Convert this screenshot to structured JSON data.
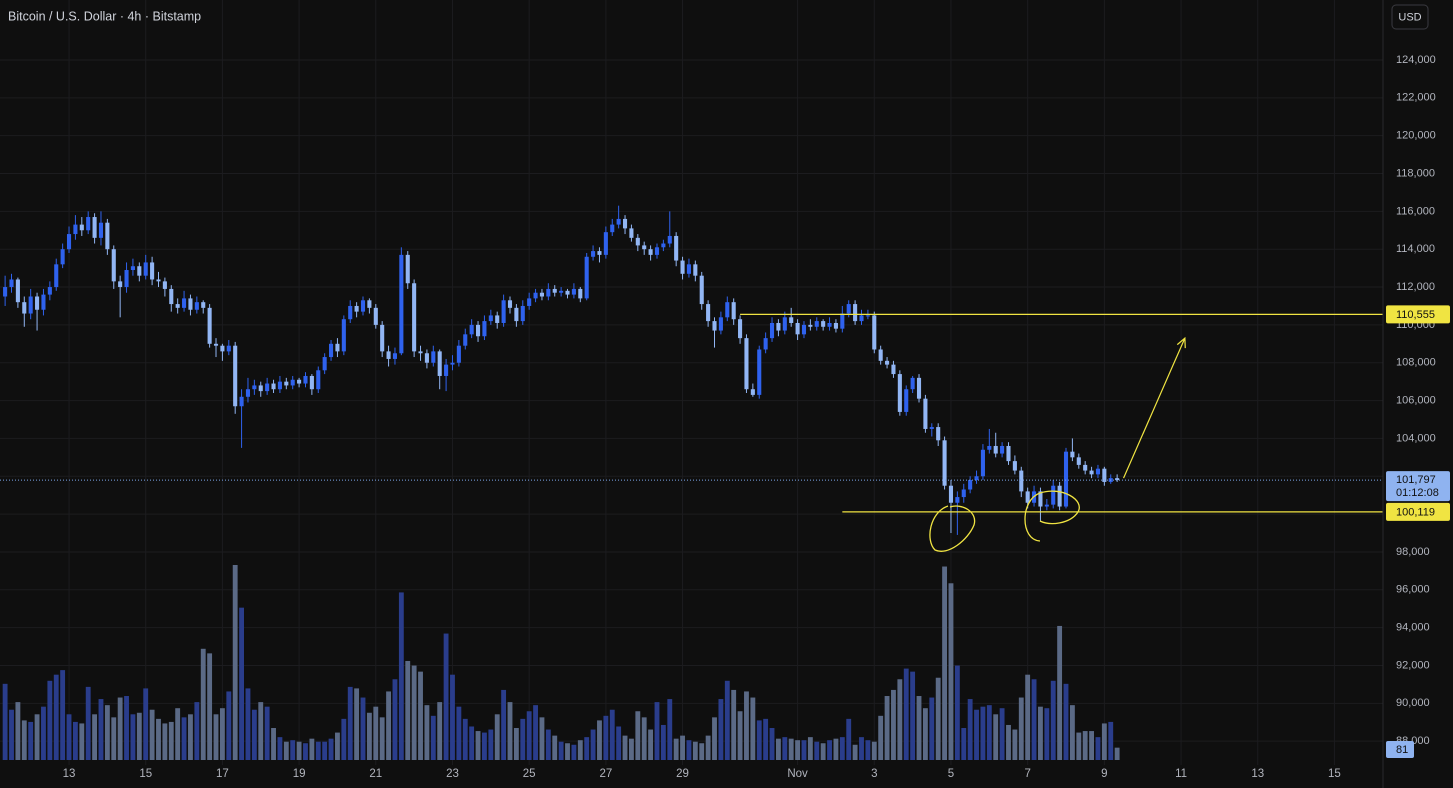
{
  "chart_data": {
    "type": "candlestick",
    "title": "Bitcoin / U.S. Dollar · 4h · Bitstamp",
    "currency_button": "USD",
    "up_color": "#2f62ee",
    "down_color": "#92b6f4",
    "volume_up_color": "#2a3d8c",
    "volume_down_color": "#5b6a86",
    "grid": true,
    "xlim": [
      -0.8,
      215.6
    ],
    "ylim": [
      86740,
      127170
    ],
    "xticks": [
      {
        "value": 10,
        "label": "13"
      },
      {
        "value": 22,
        "label": "15"
      },
      {
        "value": 34,
        "label": "17"
      },
      {
        "value": 46,
        "label": "19"
      },
      {
        "value": 58,
        "label": "21"
      },
      {
        "value": 70,
        "label": "23"
      },
      {
        "value": 82,
        "label": "25"
      },
      {
        "value": 94,
        "label": "27"
      },
      {
        "value": 106,
        "label": "29"
      },
      {
        "value": 124,
        "label": "Nov"
      },
      {
        "value": 136,
        "label": "3"
      },
      {
        "value": 148,
        "label": "5"
      },
      {
        "value": 160,
        "label": "7"
      },
      {
        "value": 172,
        "label": "9"
      },
      {
        "value": 184,
        "label": "11"
      },
      {
        "value": 196,
        "label": "13"
      },
      {
        "value": 208,
        "label": "15"
      }
    ],
    "yticks": [
      {
        "value": 88000,
        "label": "88,000"
      },
      {
        "value": 90000,
        "label": "90,000"
      },
      {
        "value": 92000,
        "label": "92,000"
      },
      {
        "value": 94000,
        "label": "94,000"
      },
      {
        "value": 96000,
        "label": "96,000"
      },
      {
        "value": 98000,
        "label": "98,000"
      },
      {
        "value": 100000,
        "label": "100,000"
      },
      {
        "value": 102000,
        "label": "102,000"
      },
      {
        "value": 104000,
        "label": "104,000"
      },
      {
        "value": 106000,
        "label": "106,000"
      },
      {
        "value": 108000,
        "label": "108,000"
      },
      {
        "value": 110000,
        "label": "110,000"
      },
      {
        "value": 112000,
        "label": "112,000"
      },
      {
        "value": 114000,
        "label": "114,000"
      },
      {
        "value": 116000,
        "label": "116,000"
      },
      {
        "value": 118000,
        "label": "118,000"
      },
      {
        "value": 120000,
        "label": "120,000"
      },
      {
        "value": 122000,
        "label": "122,000"
      },
      {
        "value": 124000,
        "label": "124,000"
      }
    ],
    "ohlc": [
      [
        111500,
        112600,
        111000,
        112000
      ],
      [
        112000,
        112700,
        111700,
        112400
      ],
      [
        112400,
        112500,
        110900,
        111200
      ],
      [
        111200,
        111500,
        109900,
        110600
      ],
      [
        110600,
        111900,
        110300,
        111500
      ],
      [
        111500,
        111700,
        109700,
        110800
      ],
      [
        110800,
        111900,
        110500,
        111600
      ],
      [
        111600,
        112300,
        111300,
        112000
      ],
      [
        112000,
        113500,
        111800,
        113200
      ],
      [
        113200,
        114300,
        113000,
        114000
      ],
      [
        114000,
        115200,
        113800,
        114800
      ],
      [
        114800,
        115800,
        114500,
        115300
      ],
      [
        115300,
        115700,
        114700,
        115000
      ],
      [
        115000,
        116000,
        114800,
        115700
      ],
      [
        115700,
        115900,
        114300,
        114600
      ],
      [
        114600,
        116000,
        114200,
        115400
      ],
      [
        115400,
        115600,
        113700,
        114000
      ],
      [
        114000,
        114200,
        111900,
        112300
      ],
      [
        112300,
        112600,
        110400,
        112000
      ],
      [
        112000,
        113300,
        111700,
        112900
      ],
      [
        112900,
        113500,
        112600,
        113100
      ],
      [
        113100,
        113300,
        112300,
        112600
      ],
      [
        112600,
        113700,
        112400,
        113300
      ],
      [
        113300,
        113600,
        112100,
        112400
      ],
      [
        112400,
        112800,
        112000,
        112300
      ],
      [
        112300,
        112500,
        111500,
        111900
      ],
      [
        111900,
        112100,
        110700,
        111100
      ],
      [
        111100,
        111400,
        110600,
        110900
      ],
      [
        110900,
        111800,
        110700,
        111400
      ],
      [
        111400,
        111600,
        110500,
        110800
      ],
      [
        110800,
        111500,
        110600,
        111200
      ],
      [
        111200,
        111300,
        110600,
        110900
      ],
      [
        110900,
        111100,
        108800,
        109000
      ],
      [
        109000,
        109300,
        108300,
        108900
      ],
      [
        108900,
        109000,
        108100,
        108600
      ],
      [
        108600,
        109200,
        108400,
        108900
      ],
      [
        108900,
        109100,
        105300,
        105700
      ],
      [
        105700,
        106600,
        103500,
        106200
      ],
      [
        106200,
        107200,
        105900,
        106600
      ],
      [
        106600,
        107100,
        106300,
        106800
      ],
      [
        106800,
        107000,
        106200,
        106500
      ],
      [
        106500,
        107200,
        106300,
        106900
      ],
      [
        106900,
        107100,
        106400,
        106600
      ],
      [
        106600,
        107300,
        106400,
        107000
      ],
      [
        107000,
        107200,
        106600,
        106800
      ],
      [
        106800,
        107300,
        106600,
        107100
      ],
      [
        107100,
        107200,
        106700,
        106900
      ],
      [
        106900,
        107500,
        106700,
        107300
      ],
      [
        107300,
        107400,
        106300,
        106600
      ],
      [
        106600,
        107800,
        106400,
        107600
      ],
      [
        107600,
        108500,
        107400,
        108300
      ],
      [
        108300,
        109200,
        108100,
        109000
      ],
      [
        109000,
        109300,
        108300,
        108600
      ],
      [
        108600,
        110500,
        108400,
        110300
      ],
      [
        110300,
        111300,
        110100,
        111000
      ],
      [
        111000,
        111200,
        110400,
        110700
      ],
      [
        110700,
        111500,
        110500,
        111300
      ],
      [
        111300,
        111400,
        110600,
        110900
      ],
      [
        110900,
        111100,
        109800,
        110000
      ],
      [
        110000,
        110200,
        108300,
        108600
      ],
      [
        108600,
        108900,
        107800,
        108200
      ],
      [
        108200,
        108800,
        107900,
        108500
      ],
      [
        108500,
        114100,
        108400,
        113700
      ],
      [
        113700,
        113900,
        111900,
        112200
      ],
      [
        112200,
        112400,
        108300,
        108600
      ],
      [
        108600,
        108900,
        108100,
        108500
      ],
      [
        108500,
        108700,
        107700,
        108000
      ],
      [
        108000,
        108900,
        107800,
        108600
      ],
      [
        108600,
        108700,
        106600,
        107300
      ],
      [
        107300,
        108200,
        106500,
        107900
      ],
      [
        107900,
        108400,
        107600,
        108000
      ],
      [
        108000,
        109200,
        107800,
        108900
      ],
      [
        108900,
        109800,
        108700,
        109500
      ],
      [
        109500,
        110300,
        109300,
        110000
      ],
      [
        110000,
        110200,
        109100,
        109400
      ],
      [
        109400,
        110500,
        109200,
        110200
      ],
      [
        110200,
        110800,
        110000,
        110500
      ],
      [
        110500,
        110700,
        109800,
        110100
      ],
      [
        110100,
        111600,
        109900,
        111300
      ],
      [
        111300,
        111500,
        110600,
        110900
      ],
      [
        110900,
        111100,
        109900,
        110200
      ],
      [
        110200,
        111300,
        110000,
        111000
      ],
      [
        111000,
        111700,
        110800,
        111400
      ],
      [
        111400,
        111900,
        111200,
        111700
      ],
      [
        111700,
        111900,
        111300,
        111500
      ],
      [
        111500,
        112200,
        111300,
        111900
      ],
      [
        111900,
        112100,
        111500,
        111700
      ],
      [
        111700,
        112000,
        111500,
        111800
      ],
      [
        111800,
        111900,
        111400,
        111600
      ],
      [
        111600,
        112200,
        111400,
        111900
      ],
      [
        111900,
        112000,
        111200,
        111400
      ],
      [
        111400,
        113800,
        111300,
        113600
      ],
      [
        113600,
        114200,
        113400,
        113900
      ],
      [
        113900,
        114100,
        113300,
        113700
      ],
      [
        113700,
        115200,
        113500,
        114900
      ],
      [
        114900,
        115600,
        114700,
        115300
      ],
      [
        115300,
        116300,
        115100,
        115600
      ],
      [
        115600,
        115800,
        114800,
        115100
      ],
      [
        115100,
        115300,
        114400,
        114600
      ],
      [
        114600,
        114800,
        113900,
        114200
      ],
      [
        114200,
        114400,
        113700,
        114000
      ],
      [
        114000,
        114200,
        113400,
        113700
      ],
      [
        113700,
        114300,
        113500,
        114100
      ],
      [
        114100,
        114500,
        113900,
        114300
      ],
      [
        114300,
        116000,
        114100,
        114700
      ],
      [
        114700,
        114900,
        113100,
        113400
      ],
      [
        113400,
        113600,
        112400,
        112700
      ],
      [
        112700,
        113500,
        112500,
        113200
      ],
      [
        113200,
        113400,
        112300,
        112600
      ],
      [
        112600,
        112800,
        110800,
        111100
      ],
      [
        111100,
        111300,
        109900,
        110200
      ],
      [
        110200,
        110400,
        108800,
        109700
      ],
      [
        109700,
        110700,
        109500,
        110400
      ],
      [
        110400,
        111500,
        110200,
        111200
      ],
      [
        111200,
        111400,
        110000,
        110300
      ],
      [
        110300,
        110500,
        109000,
        109300
      ],
      [
        109300,
        109500,
        106400,
        106600
      ],
      [
        106600,
        106900,
        106200,
        106300
      ],
      [
        106300,
        108900,
        106100,
        108700
      ],
      [
        108700,
        109600,
        108500,
        109300
      ],
      [
        109300,
        110400,
        109100,
        110100
      ],
      [
        110100,
        110300,
        109400,
        109700
      ],
      [
        109700,
        110700,
        109500,
        110400
      ],
      [
        110400,
        110900,
        109900,
        110100
      ],
      [
        110100,
        110300,
        109200,
        109500
      ],
      [
        109500,
        110200,
        109300,
        110000
      ],
      [
        110000,
        110300,
        109700,
        109900
      ],
      [
        109900,
        110400,
        109700,
        110200
      ],
      [
        110200,
        110300,
        109700,
        109900
      ],
      [
        109900,
        110400,
        109700,
        110100
      ],
      [
        110100,
        110300,
        109600,
        109800
      ],
      [
        109800,
        111000,
        109600,
        110600
      ],
      [
        110600,
        111300,
        110400,
        111100
      ],
      [
        111100,
        111300,
        110000,
        110200
      ],
      [
        110200,
        110800,
        110000,
        110500
      ],
      [
        110500,
        110800,
        110300,
        110500
      ],
      [
        110500,
        110700,
        108500,
        108700
      ],
      [
        108700,
        108900,
        107900,
        108100
      ],
      [
        108100,
        108300,
        107700,
        107900
      ],
      [
        107900,
        108100,
        107200,
        107400
      ],
      [
        107400,
        107600,
        105200,
        105400
      ],
      [
        105400,
        106800,
        105200,
        106600
      ],
      [
        106600,
        107300,
        106400,
        107200
      ],
      [
        107200,
        107400,
        105900,
        106100
      ],
      [
        106100,
        106300,
        104300,
        104500
      ],
      [
        104500,
        104800,
        104100,
        104600
      ],
      [
        104600,
        104800,
        103600,
        103900
      ],
      [
        103900,
        104100,
        101300,
        101500
      ],
      [
        101500,
        101800,
        99000,
        100600
      ],
      [
        100600,
        101200,
        98900,
        100900
      ],
      [
        100900,
        101600,
        100600,
        101300
      ],
      [
        101300,
        102000,
        101100,
        101800
      ],
      [
        101800,
        102300,
        101600,
        102000
      ],
      [
        102000,
        103700,
        101800,
        103400
      ],
      [
        103400,
        104500,
        103200,
        103600
      ],
      [
        103600,
        104300,
        103000,
        103200
      ],
      [
        103200,
        103800,
        103000,
        103600
      ],
      [
        103600,
        103800,
        102600,
        102800
      ],
      [
        102800,
        103100,
        102100,
        102300
      ],
      [
        102300,
        102500,
        100900,
        101200
      ],
      [
        101200,
        101400,
        100300,
        100600
      ],
      [
        100600,
        101500,
        100400,
        101200
      ],
      [
        101200,
        101400,
        99600,
        100400
      ],
      [
        100400,
        100800,
        100200,
        100500
      ],
      [
        100500,
        101800,
        100300,
        101500
      ],
      [
        101500,
        101700,
        100200,
        100400
      ],
      [
        100400,
        103500,
        100300,
        103300
      ],
      [
        103300,
        104000,
        102800,
        103000
      ],
      [
        103000,
        103200,
        102400,
        102600
      ],
      [
        102600,
        102800,
        102100,
        102300
      ],
      [
        102300,
        102500,
        101900,
        102100
      ],
      [
        102100,
        102600,
        101900,
        102400
      ],
      [
        102400,
        102500,
        101500,
        101700
      ],
      [
        101700,
        102100,
        101600,
        101900
      ],
      [
        101900,
        102100,
        101700,
        101797
      ]
    ],
    "volume": [
      500,
      330,
      380,
      260,
      250,
      300,
      350,
      520,
      560,
      590,
      300,
      250,
      240,
      480,
      300,
      400,
      360,
      280,
      410,
      420,
      300,
      310,
      470,
      330,
      270,
      240,
      250,
      340,
      280,
      300,
      380,
      730,
      700,
      300,
      340,
      450,
      1280,
      1000,
      470,
      330,
      380,
      350,
      210,
      150,
      120,
      130,
      120,
      110,
      140,
      120,
      120,
      140,
      180,
      270,
      480,
      470,
      410,
      310,
      350,
      280,
      450,
      530,
      1100,
      650,
      620,
      580,
      360,
      290,
      380,
      830,
      560,
      350,
      270,
      220,
      190,
      180,
      200,
      300,
      460,
      380,
      210,
      270,
      320,
      360,
      280,
      200,
      160,
      120,
      110,
      100,
      130,
      150,
      200,
      260,
      290,
      330,
      220,
      160,
      140,
      320,
      280,
      200,
      380,
      230,
      400,
      140,
      160,
      130,
      120,
      110,
      160,
      280,
      400,
      520,
      460,
      320,
      450,
      410,
      260,
      270,
      210,
      140,
      150,
      140,
      130,
      130,
      150,
      120,
      110,
      130,
      140,
      150,
      270,
      100,
      150,
      130,
      120,
      290,
      420,
      460,
      530,
      600,
      580,
      420,
      340,
      410,
      540,
      1270,
      1160,
      620,
      210,
      400,
      330,
      350,
      360,
      300,
      340,
      230,
      200,
      410,
      560,
      530,
      350,
      340,
      520,
      880,
      500,
      360,
      180,
      190,
      190,
      150,
      240,
      250,
      81
    ],
    "horizontal_lines": [
      {
        "value": 110555,
        "label": "110,555",
        "start": 115
      },
      {
        "value": 100119,
        "label": "100,119",
        "start": 131
      }
    ],
    "line_color": "#f0e442",
    "last_price": {
      "value": 101797,
      "label": "101,797",
      "countdown": "01:12:08"
    },
    "arrow": {
      "from": [
        175,
        101900
      ],
      "to": [
        184.6,
        109300
      ]
    }
  }
}
